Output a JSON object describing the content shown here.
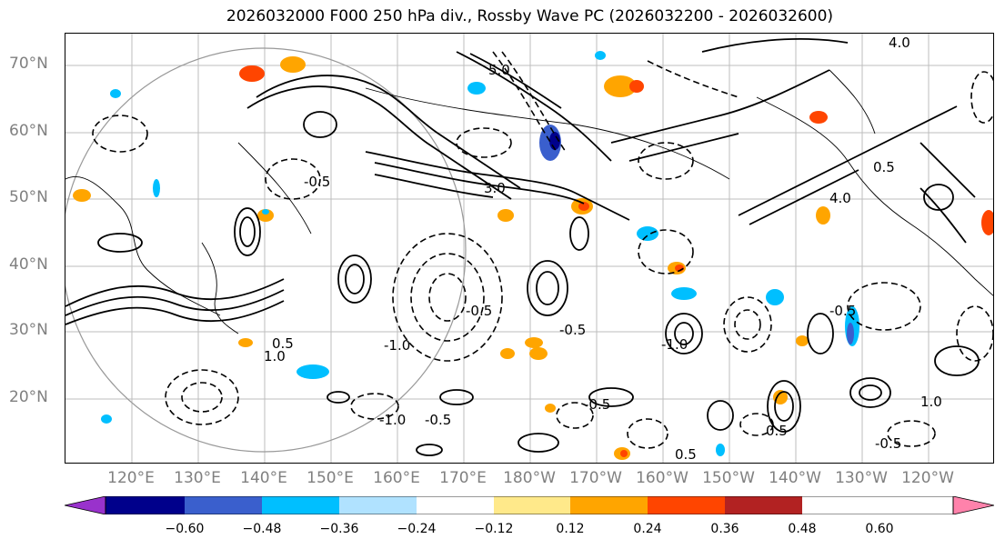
{
  "title": "2026032000 F000 250 hPa div., Rossby Wave PC (2026032200 - 2026032600)",
  "lat_labels": [
    "70°N",
    "60°N",
    "50°N",
    "40°N",
    "30°N",
    "20°N"
  ],
  "lon_labels": [
    "120°E",
    "130°E",
    "140°E",
    "150°E",
    "160°E",
    "170°E",
    "180°W",
    "170°W",
    "160°W",
    "150°W",
    "140°W",
    "130°W",
    "120°W"
  ],
  "contour_labels": [
    "-0.5",
    "-1.0",
    "0.5",
    "1.0",
    "3.0",
    "4.0",
    "5.0"
  ],
  "colorbar": {
    "ticks": [
      "−0.60",
      "−0.48",
      "−0.36",
      "−0.24",
      "−0.12",
      "0.12",
      "0.24",
      "0.36",
      "0.48",
      "0.60"
    ],
    "colors": [
      "#9932CC",
      "#00008B",
      "#3A5FCD",
      "#00BFFF",
      "#B0E2FF",
      "#FFFFFF",
      "#FFE98A",
      "#FFA500",
      "#FF4500",
      "#B22222",
      "#FF82AB"
    ]
  }
}
